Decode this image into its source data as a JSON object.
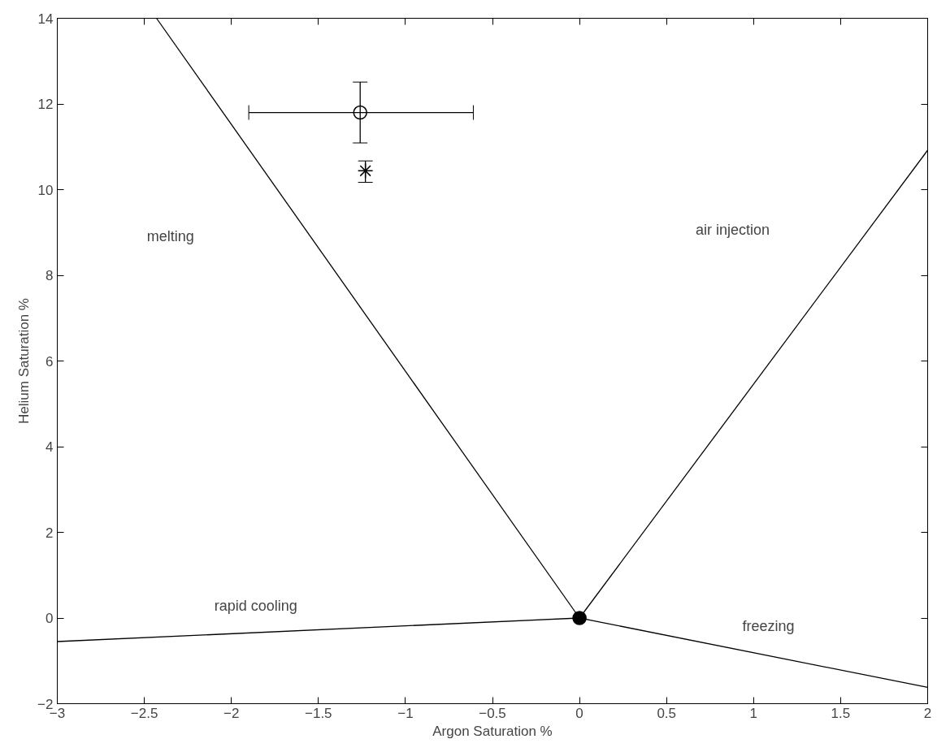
{
  "chart_data": {
    "type": "line",
    "xlabel": "Argon Saturation %",
    "ylabel": "Helium Saturation %",
    "xlim": [
      -3,
      2
    ],
    "ylim": [
      -2,
      14
    ],
    "xticks": [
      {
        "value": -3,
        "label": "−3"
      },
      {
        "value": -2.5,
        "label": "−2.5"
      },
      {
        "value": -2,
        "label": "−2"
      },
      {
        "value": -1.5,
        "label": "−1.5"
      },
      {
        "value": -1,
        "label": "−1"
      },
      {
        "value": -0.5,
        "label": "−0.5"
      },
      0,
      0.5,
      1,
      1.5,
      2
    ],
    "yticks": [
      {
        "value": -2,
        "label": "−2"
      },
      0,
      2,
      4,
      6,
      8,
      10,
      12,
      14
    ],
    "grid": false,
    "line_style": "solid",
    "series": [
      {
        "color": "#000000",
        "x": [
          0,
          -2.43
        ],
        "values": [
          0,
          14
        ]
      },
      {
        "color": "#000000",
        "x": [
          0,
          2
        ],
        "values": [
          0,
          10.92
        ]
      },
      {
        "color": "#000000",
        "x": [
          0,
          -3
        ],
        "values": [
          0,
          -0.55
        ]
      },
      {
        "color": "#000000",
        "x": [
          0,
          2
        ],
        "values": [
          0,
          -1.62
        ]
      },
      {
        "type": "scatter",
        "marker": "circle",
        "color": "#000000",
        "x": [
          0
        ],
        "values": [
          0
        ]
      },
      {
        "type": "scatter",
        "marker": "circle",
        "color": "#000000",
        "x": [
          -1.26
        ],
        "values": [
          11.8
        ],
        "errors": [
          [
            11.09,
            12.51
          ]
        ],
        "xerrors": [
          [
            -1.9,
            -0.61
          ]
        ]
      },
      {
        "type": "scatter",
        "marker": "cross",
        "color": "#000000",
        "x": [
          -1.23
        ],
        "values": [
          10.44
        ],
        "errors": [
          [
            10.17,
            10.67
          ]
        ]
      }
    ],
    "annotations": [
      "melting",
      "air injection",
      "rapid cooling",
      "freezing"
    ]
  }
}
